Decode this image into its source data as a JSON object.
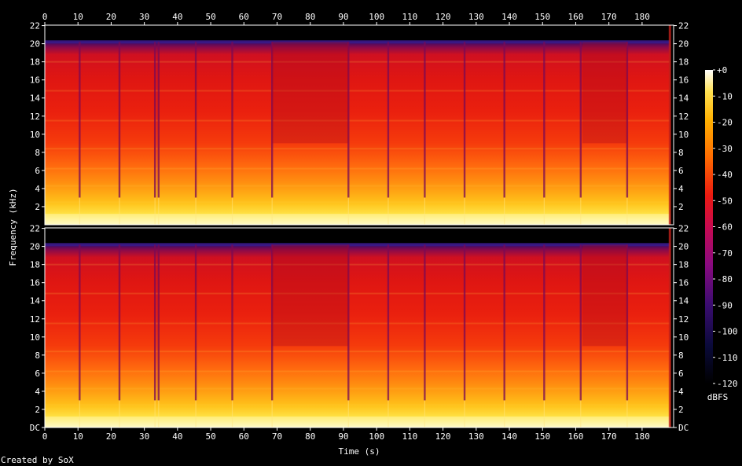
{
  "chart_data": {
    "type": "heatmap",
    "xlabel": "Time (s)",
    "ylabel": "Frequency (kHz)",
    "x_ticks": [
      0,
      10,
      20,
      30,
      40,
      50,
      60,
      70,
      80,
      90,
      100,
      110,
      120,
      130,
      140,
      150,
      160,
      170,
      180
    ],
    "xlim": [
      0,
      189.5
    ],
    "channels": [
      {
        "y_ticks": [
          "2",
          "4",
          "6",
          "8",
          "10",
          "12",
          "14",
          "16",
          "18",
          "20",
          "22"
        ]
      },
      {
        "y_ticks": [
          "DC",
          "2",
          "4",
          "6",
          "8",
          "10",
          "12",
          "14",
          "16",
          "18",
          "20",
          "22"
        ]
      }
    ],
    "ylim": [
      0,
      22.05
    ],
    "colorbar": {
      "label": "dBFS",
      "ticks": [
        "+0",
        "-10",
        "-20",
        "-30",
        "-40",
        "-50",
        "-60",
        "-70",
        "-80",
        "-90",
        "-100",
        "-110",
        "-120"
      ],
      "range": [
        -120,
        0
      ]
    },
    "cutoff_khz": 20.2,
    "signal_end_s": 188.5,
    "segment_boundaries_s": [
      10.5,
      22.5,
      33.2,
      34.3,
      45.5,
      56.5,
      68.5,
      91.5,
      103.5,
      114.5,
      126.5,
      138.5,
      150.5,
      161.5,
      175.5
    ]
  },
  "footer": {
    "credit": "Created by SoX"
  }
}
